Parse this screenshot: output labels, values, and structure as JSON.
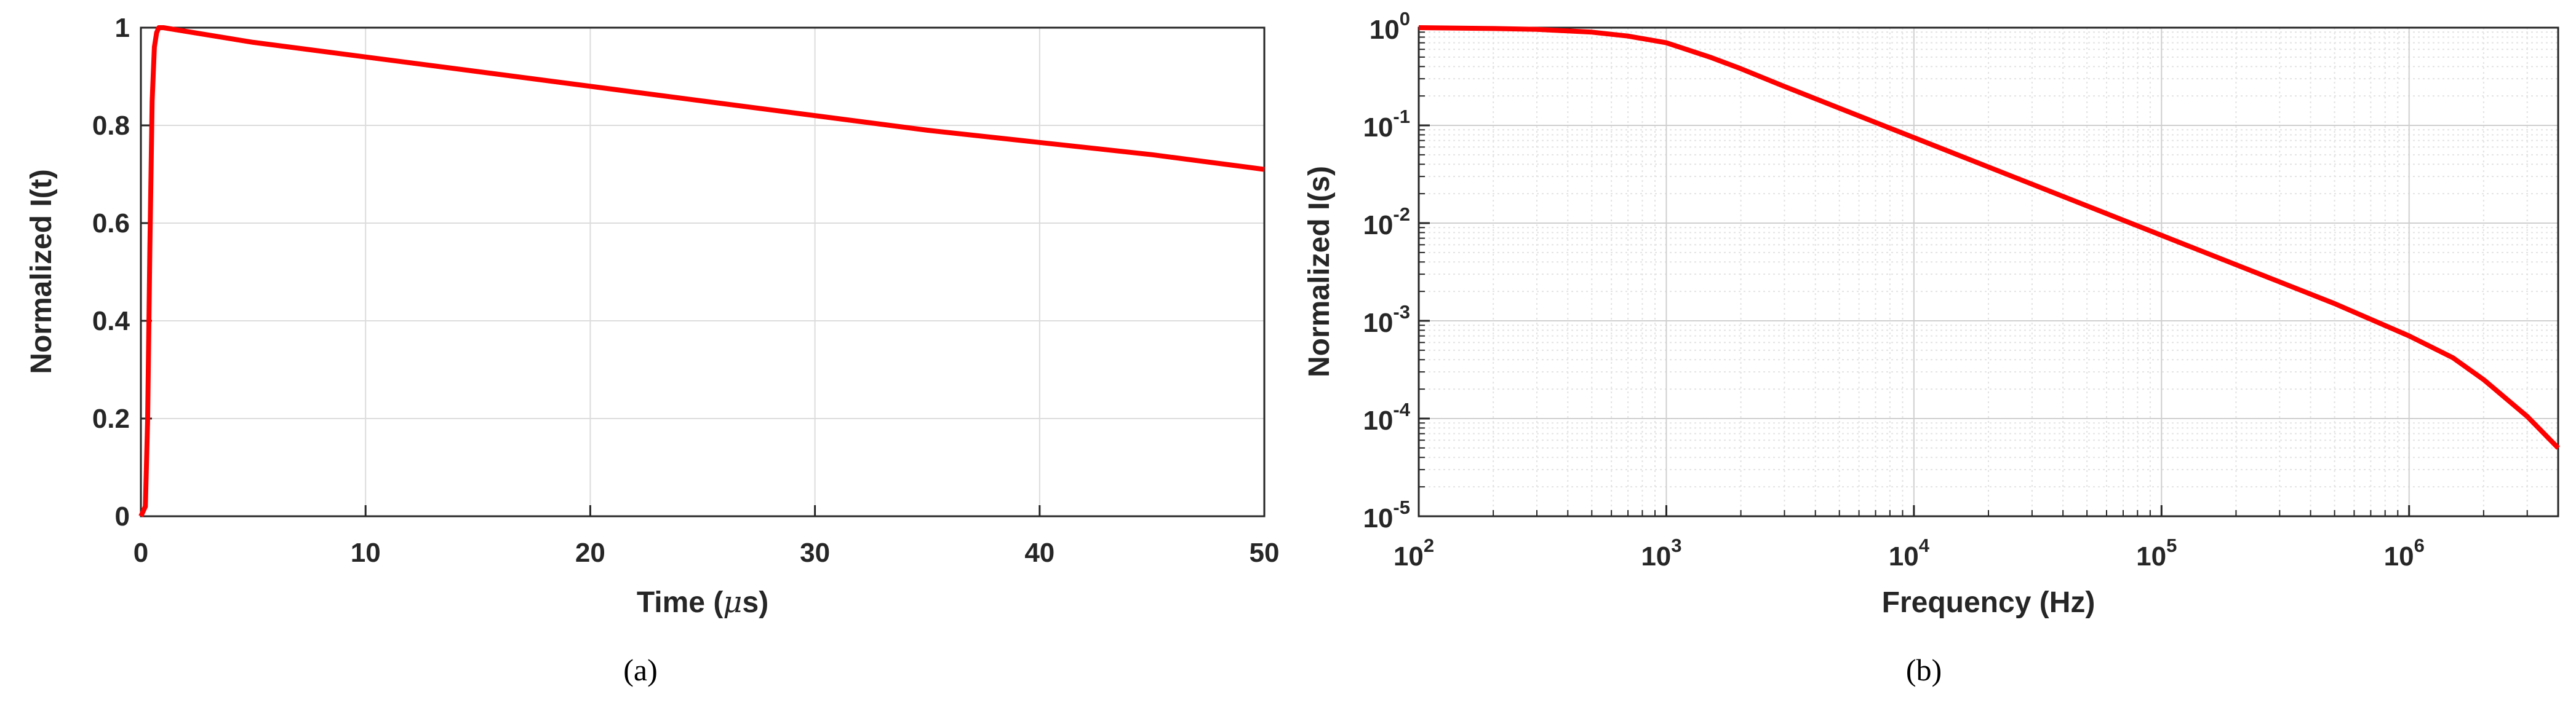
{
  "chart_data": [
    {
      "type": "line",
      "panel_label": "(a)",
      "xlabel": "Time (μs)",
      "ylabel": "Normalized I(t)",
      "xlim": [
        0,
        50
      ],
      "ylim": [
        0,
        1
      ],
      "x_ticks": [
        "0",
        "10",
        "20",
        "30",
        "40",
        "50"
      ],
      "y_ticks": [
        "0",
        "0.2",
        "0.4",
        "0.6",
        "0.8",
        "1"
      ],
      "grid": true,
      "line_color": "#ff0000",
      "series": [
        {
          "x": [
            0,
            0.2,
            0.3,
            0.4,
            0.5,
            0.6,
            0.7,
            0.8,
            1.0,
            5,
            10,
            15,
            20,
            25,
            30,
            35,
            40,
            45,
            50
          ],
          "y": [
            0,
            0.02,
            0.2,
            0.55,
            0.85,
            0.96,
            0.99,
            1.0,
            1.0,
            0.97,
            0.94,
            0.91,
            0.88,
            0.85,
            0.82,
            0.79,
            0.765,
            0.74,
            0.71
          ]
        }
      ]
    },
    {
      "type": "line",
      "panel_label": "(b)",
      "xlabel": "Frequency (Hz)",
      "ylabel": "Normalized I(s)",
      "xscale": "log",
      "yscale": "log",
      "xlim": [
        100,
        4000000
      ],
      "ylim": [
        1e-05,
        1
      ],
      "x_ticks": [
        {
          "base": "10",
          "exp": "2"
        },
        {
          "base": "10",
          "exp": "3"
        },
        {
          "base": "10",
          "exp": "4"
        },
        {
          "base": "10",
          "exp": "5"
        },
        {
          "base": "10",
          "exp": "6"
        }
      ],
      "y_ticks": [
        {
          "base": "10",
          "exp": "0"
        },
        {
          "base": "10",
          "exp": "-1"
        },
        {
          "base": "10",
          "exp": "-2"
        },
        {
          "base": "10",
          "exp": "-3"
        },
        {
          "base": "10",
          "exp": "-4"
        },
        {
          "base": "10",
          "exp": "-5"
        }
      ],
      "grid": true,
      "minor_grid": true,
      "line_color": "#ff0000",
      "series": [
        {
          "x": [
            100,
            200,
            300,
            500,
            700,
            1000,
            1500,
            2000,
            3000,
            5000,
            10000,
            30000,
            100000,
            300000,
            500000,
            1000000,
            1500000,
            2000000,
            3000000,
            4000000
          ],
          "y": [
            1.0,
            0.98,
            0.96,
            0.9,
            0.82,
            0.7,
            0.5,
            0.38,
            0.25,
            0.15,
            0.075,
            0.025,
            0.0075,
            0.0025,
            0.0015,
            0.0007,
            0.00042,
            0.00025,
            0.000105,
            5e-05
          ]
        }
      ]
    }
  ]
}
